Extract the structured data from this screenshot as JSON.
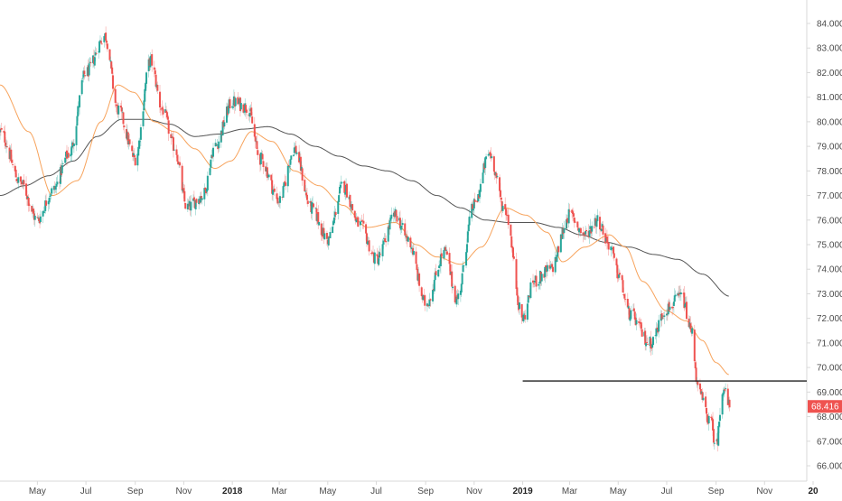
{
  "chart_data": {
    "type": "candlestick",
    "title": "",
    "xlabel": "",
    "ylabel": "",
    "ylim": [
      65.4,
      84.6
    ],
    "grid": false,
    "colors": {
      "up": "#26a69a",
      "down": "#ef5350",
      "ma_fast": "#f7a35c",
      "ma_slow": "#555555",
      "horizontal_line": "#222222",
      "last_price_bg": "#ef5350",
      "axis_text": "#4a4a4a",
      "axis_line": "#d9d9d9"
    },
    "x_ticks": [
      {
        "label": "May",
        "date": "2017-05-01",
        "bold": false
      },
      {
        "label": "Jul",
        "date": "2017-07-01",
        "bold": false
      },
      {
        "label": "Sep",
        "date": "2017-09-01",
        "bold": false
      },
      {
        "label": "Nov",
        "date": "2017-11-01",
        "bold": false
      },
      {
        "label": "2018",
        "date": "2018-01-01",
        "bold": true
      },
      {
        "label": "Mar",
        "date": "2018-03-01",
        "bold": false
      },
      {
        "label": "May",
        "date": "2018-05-01",
        "bold": false
      },
      {
        "label": "Jul",
        "date": "2018-07-01",
        "bold": false
      },
      {
        "label": "Sep",
        "date": "2018-09-01",
        "bold": false
      },
      {
        "label": "Nov",
        "date": "2018-11-01",
        "bold": false
      },
      {
        "label": "2019",
        "date": "2019-01-01",
        "bold": true
      },
      {
        "label": "Mar",
        "date": "2019-03-01",
        "bold": false
      },
      {
        "label": "May",
        "date": "2019-05-01",
        "bold": false
      },
      {
        "label": "Jul",
        "date": "2019-07-01",
        "bold": false
      },
      {
        "label": "Sep",
        "date": "2019-09-01",
        "bold": false
      },
      {
        "label": "Nov",
        "date": "2019-11-01",
        "bold": false
      },
      {
        "label": "20",
        "date": "2020-01-01",
        "bold": true
      }
    ],
    "y_ticks": [
      "84.000",
      "83.000",
      "82.000",
      "81.000",
      "80.000",
      "79.000",
      "78.000",
      "77.000",
      "76.000",
      "75.000",
      "74.000",
      "73.000",
      "72.000",
      "71.000",
      "70.000",
      "69.000",
      "68.000",
      "67.000",
      "66.000"
    ],
    "y_tick_values": [
      84,
      83,
      82,
      81,
      80,
      79,
      78,
      77,
      76,
      75,
      74,
      73,
      72,
      71,
      70,
      69,
      68,
      67,
      66
    ],
    "date_range": [
      "2017-03-15",
      "2020-01-01"
    ],
    "last_price": {
      "label": "68.416",
      "value": 68.416
    },
    "horizontal_line": {
      "value": 69.45,
      "from": "2019-01-01",
      "to": "2020-01-01"
    },
    "close_path": [
      [
        "2017-03-15",
        79.6
      ],
      [
        "2017-04-10",
        77.5
      ],
      [
        "2017-05-01",
        76.0
      ],
      [
        "2017-05-20",
        77.2
      ],
      [
        "2017-06-10",
        78.7
      ],
      [
        "2017-07-01",
        82.0
      ],
      [
        "2017-07-25",
        83.5
      ],
      [
        "2017-08-10",
        80.5
      ],
      [
        "2017-09-01",
        78.5
      ],
      [
        "2017-09-20",
        82.5
      ],
      [
        "2017-10-05",
        80.5
      ],
      [
        "2017-10-20",
        79.0
      ],
      [
        "2017-11-05",
        76.5
      ],
      [
        "2017-11-25",
        77.0
      ],
      [
        "2017-12-10",
        79.0
      ],
      [
        "2018-01-01",
        80.8
      ],
      [
        "2018-01-20",
        80.6
      ],
      [
        "2018-02-05",
        78.5
      ],
      [
        "2018-03-01",
        76.8
      ],
      [
        "2018-03-20",
        78.9
      ],
      [
        "2018-04-10",
        76.5
      ],
      [
        "2018-05-01",
        75.2
      ],
      [
        "2018-05-20",
        77.4
      ],
      [
        "2018-06-10",
        75.8
      ],
      [
        "2018-07-01",
        74.4
      ],
      [
        "2018-07-25",
        76.2
      ],
      [
        "2018-08-10",
        75.2
      ],
      [
        "2018-09-01",
        72.6
      ],
      [
        "2018-09-25",
        74.7
      ],
      [
        "2018-10-10",
        72.8
      ],
      [
        "2018-11-01",
        76.6
      ],
      [
        "2018-11-20",
        78.7
      ],
      [
        "2018-12-10",
        76.4
      ],
      [
        "2019-01-01",
        72.0
      ],
      [
        "2019-01-15",
        73.5
      ],
      [
        "2019-02-05",
        74.0
      ],
      [
        "2019-03-01",
        76.2
      ],
      [
        "2019-03-20",
        75.4
      ],
      [
        "2019-04-05",
        76.0
      ],
      [
        "2019-04-20",
        75.0
      ],
      [
        "2019-05-01",
        73.8
      ],
      [
        "2019-05-15",
        72.2
      ],
      [
        "2019-06-10",
        71.0
      ],
      [
        "2019-07-01",
        72.4
      ],
      [
        "2019-07-20",
        72.9
      ],
      [
        "2019-08-01",
        71.5
      ],
      [
        "2019-08-10",
        69.0
      ],
      [
        "2019-08-25",
        67.8
      ],
      [
        "2019-09-01",
        66.8
      ],
      [
        "2019-09-10",
        69.2
      ],
      [
        "2019-09-18",
        68.4
      ]
    ],
    "ma_fast": [
      [
        "2017-03-15",
        81.5
      ],
      [
        "2017-04-20",
        79.6
      ],
      [
        "2017-05-20",
        77.0
      ],
      [
        "2017-06-20",
        77.6
      ],
      [
        "2017-07-20",
        80.0
      ],
      [
        "2017-08-10",
        81.5
      ],
      [
        "2017-08-30",
        81.2
      ],
      [
        "2017-09-25",
        80.0
      ],
      [
        "2017-10-20",
        79.6
      ],
      [
        "2017-11-15",
        78.9
      ],
      [
        "2017-12-10",
        78.1
      ],
      [
        "2017-12-30",
        78.4
      ],
      [
        "2018-01-25",
        79.6
      ],
      [
        "2018-02-20",
        79.2
      ],
      [
        "2018-03-20",
        78.0
      ],
      [
        "2018-04-20",
        77.4
      ],
      [
        "2018-05-20",
        76.6
      ],
      [
        "2018-06-20",
        75.7
      ],
      [
        "2018-07-25",
        75.9
      ],
      [
        "2018-08-20",
        75.0
      ],
      [
        "2018-09-15",
        74.5
      ],
      [
        "2018-10-15",
        74.2
      ],
      [
        "2018-11-10",
        74.9
      ],
      [
        "2018-12-10",
        76.5
      ],
      [
        "2019-01-05",
        76.2
      ],
      [
        "2019-02-01",
        75.5
      ],
      [
        "2019-02-20",
        74.3
      ],
      [
        "2019-03-20",
        74.9
      ],
      [
        "2019-04-20",
        75.4
      ],
      [
        "2019-05-10",
        74.9
      ],
      [
        "2019-06-01",
        73.5
      ],
      [
        "2019-07-01",
        72.3
      ],
      [
        "2019-07-25",
        71.9
      ],
      [
        "2019-08-15",
        71.1
      ],
      [
        "2019-09-01",
        70.2
      ],
      [
        "2019-09-18",
        69.7
      ]
    ],
    "ma_slow": [
      [
        "2017-03-15",
        77.0
      ],
      [
        "2017-04-15",
        77.4
      ],
      [
        "2017-05-15",
        77.8
      ],
      [
        "2017-06-15",
        78.4
      ],
      [
        "2017-07-15",
        79.4
      ],
      [
        "2017-08-15",
        80.1
      ],
      [
        "2017-09-15",
        80.1
      ],
      [
        "2017-10-15",
        79.9
      ],
      [
        "2017-11-15",
        79.4
      ],
      [
        "2017-12-15",
        79.5
      ],
      [
        "2018-01-15",
        79.7
      ],
      [
        "2018-02-15",
        79.8
      ],
      [
        "2018-03-15",
        79.5
      ],
      [
        "2018-04-15",
        79.0
      ],
      [
        "2018-05-15",
        78.6
      ],
      [
        "2018-06-15",
        78.2
      ],
      [
        "2018-07-15",
        78.0
      ],
      [
        "2018-08-15",
        77.6
      ],
      [
        "2018-09-15",
        77.0
      ],
      [
        "2018-10-15",
        76.5
      ],
      [
        "2018-11-15",
        76.0
      ],
      [
        "2018-12-15",
        75.9
      ],
      [
        "2019-01-15",
        75.9
      ],
      [
        "2019-02-15",
        75.7
      ],
      [
        "2019-03-15",
        75.4
      ],
      [
        "2019-04-15",
        75.1
      ],
      [
        "2019-05-15",
        74.9
      ],
      [
        "2019-06-15",
        74.6
      ],
      [
        "2019-07-15",
        74.4
      ],
      [
        "2019-08-15",
        73.8
      ],
      [
        "2019-09-18",
        72.9
      ]
    ]
  }
}
